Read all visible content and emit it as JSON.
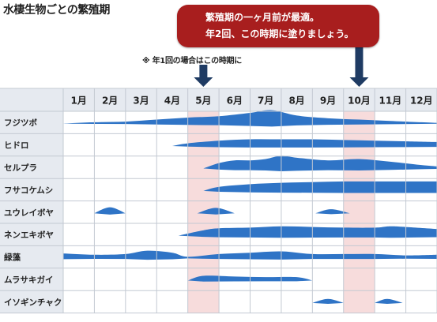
{
  "title": "水棲生物ごとの繁殖期",
  "callout": {
    "line1": "繁殖期の一ヶ月前が最適。",
    "line2": "年2回、この時期に塗りましょう。"
  },
  "note": "※ 年1回の場合はこの時期に",
  "colors": {
    "header_bg": "#e6eaf0",
    "highlight": "#f7dcdc",
    "blob": "#2f74c6",
    "callout": "#a81e1e",
    "arrow": "#1f3b63"
  },
  "chart_data": {
    "type": "area",
    "categories": [
      "1月",
      "2月",
      "3月",
      "4月",
      "5月",
      "6月",
      "7月",
      "8月",
      "9月",
      "10月",
      "11月",
      "12月"
    ],
    "highlighted_months": [
      "5月",
      "10月"
    ],
    "series": [
      {
        "name": "フジツボ",
        "points": [
          [
            0,
            0
          ],
          [
            1,
            1
          ],
          [
            2,
            1.5
          ],
          [
            3,
            3
          ],
          [
            4,
            4.5
          ],
          [
            5,
            5.5
          ],
          [
            6,
            8
          ],
          [
            6.7,
            10
          ],
          [
            7.5,
            6
          ],
          [
            8.5,
            4
          ],
          [
            9.5,
            3
          ],
          [
            10.5,
            2
          ],
          [
            11.5,
            1
          ],
          [
            12,
            0.5
          ]
        ]
      },
      {
        "name": "ヒドロ",
        "points": [
          [
            3.5,
            0
          ],
          [
            4,
            2
          ],
          [
            5,
            4
          ],
          [
            6,
            5
          ],
          [
            7,
            5
          ],
          [
            8,
            5
          ],
          [
            9,
            4.5
          ],
          [
            10,
            4
          ],
          [
            11,
            3.5
          ],
          [
            12,
            3
          ]
        ]
      },
      {
        "name": "セルプラ",
        "points": [
          [
            4.5,
            0
          ],
          [
            5,
            4
          ],
          [
            5.5,
            6
          ],
          [
            6,
            6
          ],
          [
            6.5,
            7
          ],
          [
            7,
            9.5
          ],
          [
            7.5,
            8
          ],
          [
            8.5,
            6
          ],
          [
            9.5,
            7
          ],
          [
            10.5,
            5
          ],
          [
            11.5,
            2.5
          ],
          [
            12,
            1.5
          ]
        ]
      },
      {
        "name": "フサコケムシ",
        "points": [
          [
            4.5,
            0
          ],
          [
            5,
            3
          ],
          [
            6,
            5
          ],
          [
            7,
            6
          ],
          [
            8,
            6.5
          ],
          [
            9,
            7
          ],
          [
            10,
            7
          ],
          [
            11,
            7
          ],
          [
            12,
            7
          ]
        ]
      },
      {
        "name": "ユウレイボヤ",
        "blobs": [
          [
            [
              1,
              0
            ],
            [
              1.5,
              4.5
            ],
            [
              2,
              0
            ]
          ],
          [
            [
              4.3,
              0
            ],
            [
              4.9,
              4
            ],
            [
              5.5,
              0
            ]
          ],
          [
            [
              8.1,
              0
            ],
            [
              8.6,
              3
            ],
            [
              9.2,
              0
            ]
          ]
        ]
      },
      {
        "name": "ネンエキボヤ",
        "points": [
          [
            3.7,
            0
          ],
          [
            4.5,
            4
          ],
          [
            5,
            5.5
          ],
          [
            6,
            6
          ],
          [
            7,
            7
          ],
          [
            8,
            6.5
          ],
          [
            9,
            6
          ],
          [
            10,
            6
          ],
          [
            10.5,
            7
          ],
          [
            11,
            6.5
          ],
          [
            12,
            5
          ]
        ]
      },
      {
        "name": "緑藻",
        "points": [
          [
            0,
            3.5
          ],
          [
            1,
            2.5
          ],
          [
            2,
            3
          ],
          [
            2.7,
            5.5
          ],
          [
            3.5,
            4
          ],
          [
            4,
            1
          ],
          [
            5,
            3
          ],
          [
            6,
            4
          ],
          [
            7,
            5
          ],
          [
            8,
            3
          ],
          [
            9,
            3
          ],
          [
            10,
            3
          ],
          [
            11,
            2
          ],
          [
            12,
            2.5
          ]
        ]
      },
      {
        "name": "ムラサキガイ",
        "blobs": [
          [
            [
              4,
              0
            ],
            [
              4.5,
              3.5
            ],
            [
              5.5,
              3
            ],
            [
              6.5,
              2.5
            ],
            [
              7.5,
              2.5
            ],
            [
              8,
              0
            ]
          ]
        ]
      },
      {
        "name": "イソギンチャク",
        "blobs": [
          [
            [
              8,
              0
            ],
            [
              8.5,
              3
            ],
            [
              9,
              0
            ]
          ],
          [
            [
              10,
              0
            ],
            [
              10.4,
              3
            ],
            [
              10.9,
              0
            ]
          ]
        ]
      }
    ]
  }
}
